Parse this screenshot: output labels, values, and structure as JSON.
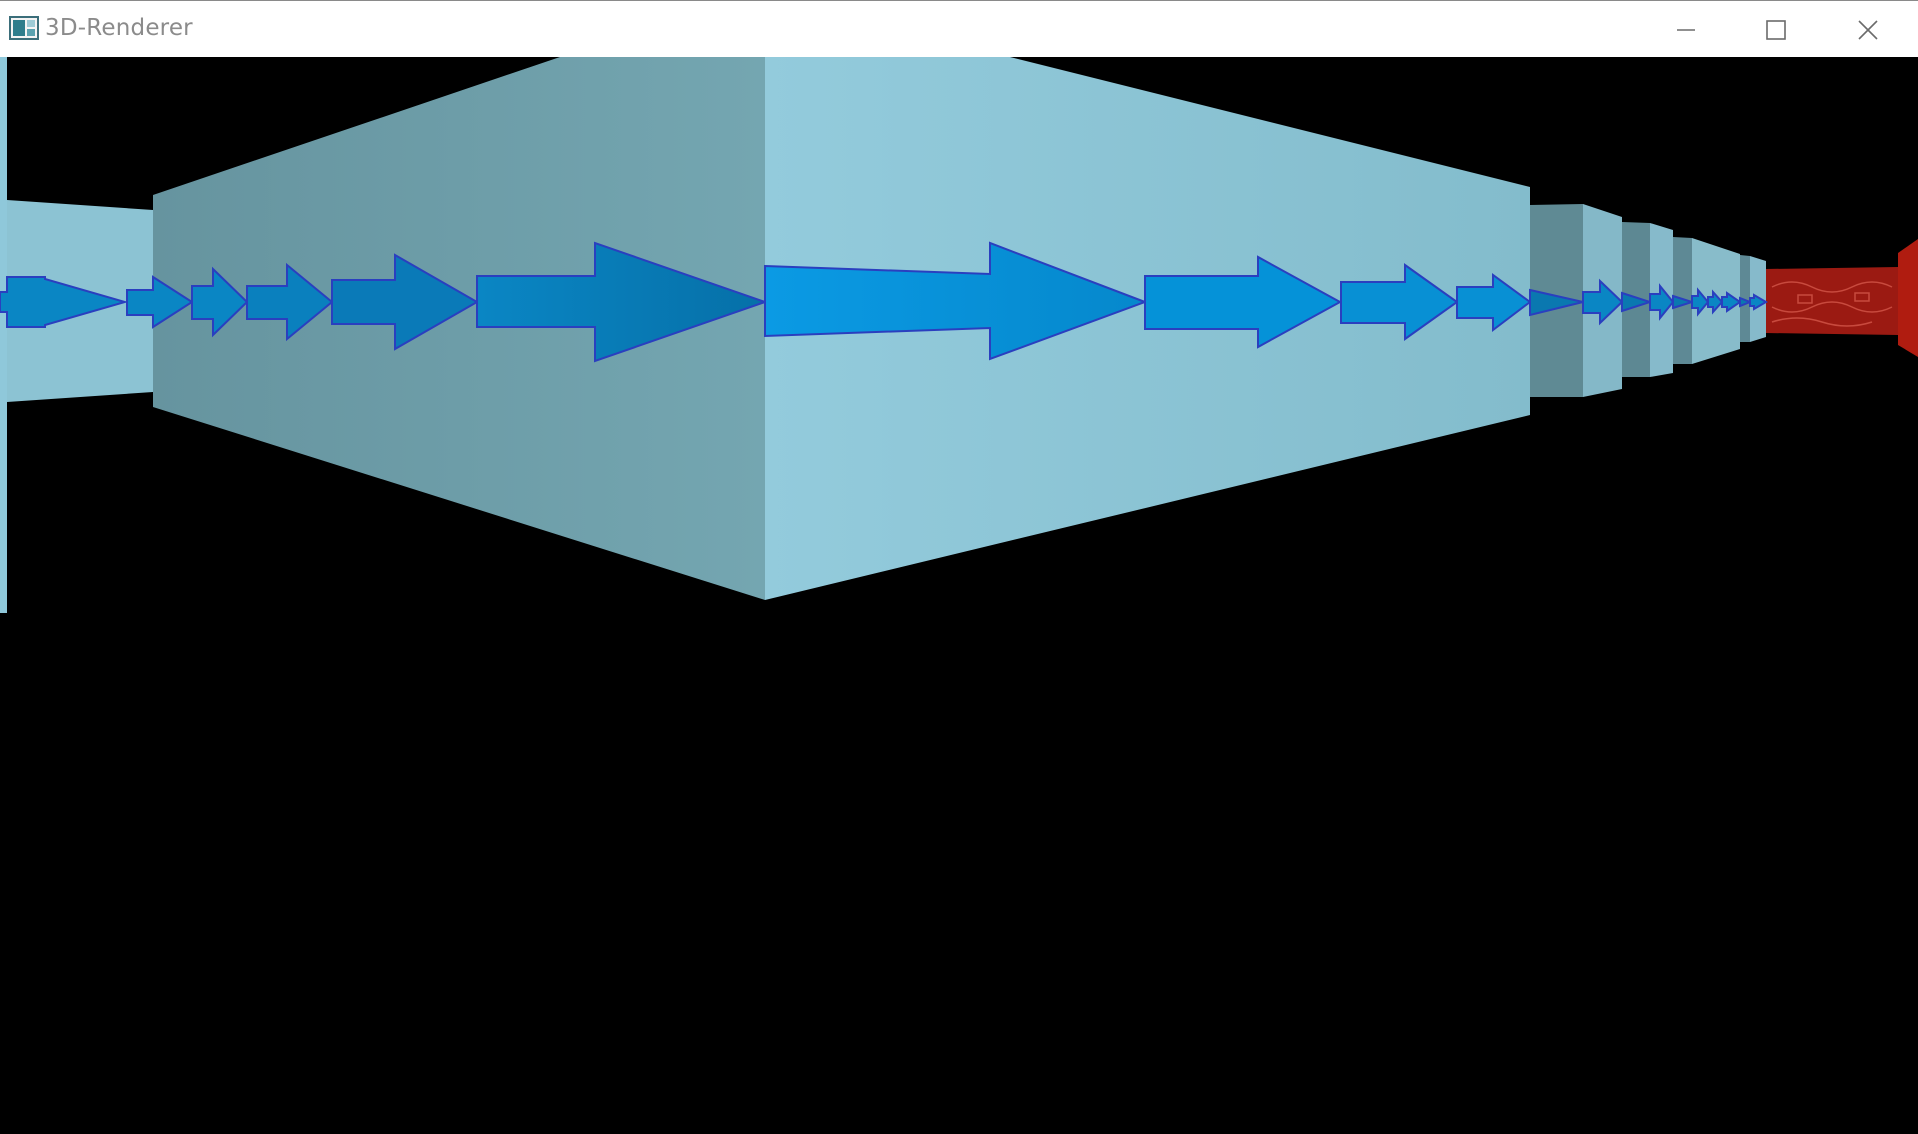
{
  "window": {
    "title": "3D-Renderer",
    "icon": "app-window-icon",
    "controls": {
      "minimize_icon": "minimize-icon",
      "maximize_icon": "maximize-icon",
      "close_icon": "close-icon"
    }
  },
  "scene": {
    "background_color": "#000000",
    "wall_color_light": "#8fc8da",
    "wall_color_dark": "#6f9faa",
    "arrow_color": "#0a8fd6",
    "arrow_outline_color": "#2a3fbf",
    "end_wall_color": "#9b1a12"
  }
}
